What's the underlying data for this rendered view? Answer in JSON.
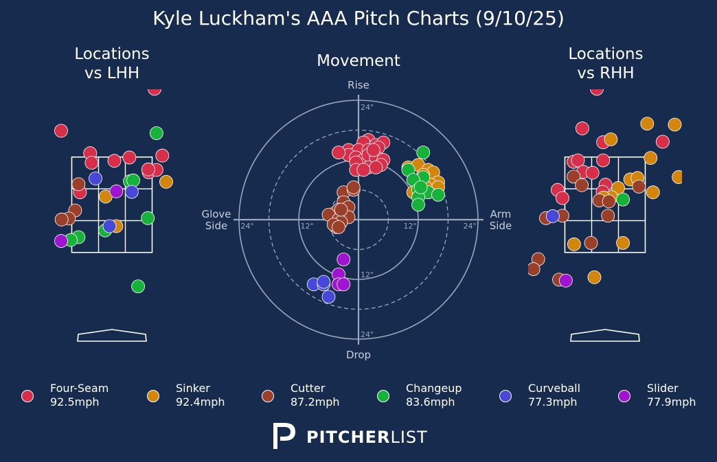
{
  "title": "Kyle Luckham's AAA Pitch Charts (9/10/25)",
  "panels": {
    "left_title": "Locations\nvs LHH",
    "center_title": "Movement",
    "right_title": "Locations\nvs RHH"
  },
  "movement_labels": {
    "rise": "Rise",
    "drop": "Drop",
    "glove": "Glove\nSide",
    "arm": "Arm\nSide",
    "tick_12": "12\"",
    "tick_24": "24\""
  },
  "colors": {
    "background": "#162B4D",
    "Four-Seam": "#D72E4A",
    "Sinker": "#D4860C",
    "Cutter": "#9A3F2A",
    "Changeup": "#16B23A",
    "Curveball": "#4747D8",
    "Slider": "#9E14D0"
  },
  "legend": [
    {
      "name": "Four-Seam",
      "speed": "92.5mph",
      "color": "#D72E4A"
    },
    {
      "name": "Sinker",
      "speed": "92.4mph",
      "color": "#D4860C"
    },
    {
      "name": "Cutter",
      "speed": "87.2mph",
      "color": "#9A3F2A"
    },
    {
      "name": "Changeup",
      "speed": "83.6mph",
      "color": "#16B23A"
    },
    {
      "name": "Curveball",
      "speed": "77.3mph",
      "color": "#4747D8"
    },
    {
      "name": "Slider",
      "speed": "77.9mph",
      "color": "#9E14D0"
    }
  ],
  "logo": {
    "bold": "PITCHER",
    "light": "LIST"
  },
  "chart_data": [
    {
      "type": "scatter",
      "title": "Locations vs LHH",
      "xlabel": "",
      "ylabel": "",
      "xlim": [
        -2.0,
        2.0
      ],
      "ylim": [
        -0.5,
        5.2
      ],
      "strike_zone": {
        "x": [
          -0.83,
          0.83
        ],
        "z": [
          1.5,
          3.5
        ],
        "grid": "3x3"
      },
      "points": [
        {
          "pitch": "Four-Seam",
          "x": 0.88,
          "z": 4.93
        },
        {
          "pitch": "Four-Seam",
          "x": -1.05,
          "z": 4.05
        },
        {
          "pitch": "Four-Seam",
          "x": -0.45,
          "z": 3.58
        },
        {
          "pitch": "Four-Seam",
          "x": -0.42,
          "z": 3.38
        },
        {
          "pitch": "Four-Seam",
          "x": 0.05,
          "z": 3.42
        },
        {
          "pitch": "Four-Seam",
          "x": 0.36,
          "z": 3.49
        },
        {
          "pitch": "Four-Seam",
          "x": 1.04,
          "z": 3.53
        },
        {
          "pitch": "Four-Seam",
          "x": 0.76,
          "z": 3.18
        },
        {
          "pitch": "Four-Seam",
          "x": 0.92,
          "z": 3.23
        },
        {
          "pitch": "Four-Seam",
          "x": 0.75,
          "z": 3.24
        },
        {
          "pitch": "Four-Seam",
          "x": -0.66,
          "z": 2.76
        },
        {
          "pitch": "Sinker",
          "x": 1.12,
          "z": 2.98
        },
        {
          "pitch": "Sinker",
          "x": -0.13,
          "z": 2.67
        },
        {
          "pitch": "Sinker",
          "x": 0.09,
          "z": 2.05
        },
        {
          "pitch": "Cutter",
          "x": -0.69,
          "z": 2.93
        },
        {
          "pitch": "Cutter",
          "x": -0.76,
          "z": 2.38
        },
        {
          "pitch": "Cutter",
          "x": -0.89,
          "z": 2.21
        },
        {
          "pitch": "Cutter",
          "x": -1.04,
          "z": 2.19
        },
        {
          "pitch": "Changeup",
          "x": 0.92,
          "z": 4.0
        },
        {
          "pitch": "Changeup",
          "x": 0.37,
          "z": 2.99
        },
        {
          "pitch": "Changeup",
          "x": 0.44,
          "z": 3.01
        },
        {
          "pitch": "Changeup",
          "x": 0.74,
          "z": 2.22
        },
        {
          "pitch": "Changeup",
          "x": -0.14,
          "z": 1.96
        },
        {
          "pitch": "Changeup",
          "x": -0.69,
          "z": 1.82
        },
        {
          "pitch": "Changeup",
          "x": -0.85,
          "z": 1.76
        },
        {
          "pitch": "Changeup",
          "x": 0.54,
          "z": 0.79
        },
        {
          "pitch": "Curveball",
          "x": -0.34,
          "z": 3.05
        },
        {
          "pitch": "Curveball",
          "x": 0.41,
          "z": 2.77
        },
        {
          "pitch": "Curveball",
          "x": -0.05,
          "z": 2.05
        },
        {
          "pitch": "Slider",
          "x": 0.09,
          "z": 2.78
        },
        {
          "pitch": "Slider",
          "x": -1.05,
          "z": 1.74
        }
      ]
    },
    {
      "type": "scatter",
      "title": "Movement",
      "xlabel": "Glove Side / Arm Side (in)",
      "ylabel": "Drop / Rise (in)",
      "xlim": [
        -24,
        24
      ],
      "ylim": [
        -24,
        24
      ],
      "rings": [
        6,
        12,
        18,
        24
      ],
      "points": [
        {
          "pitch": "Four-Seam",
          "x": 2,
          "y": 16
        },
        {
          "pitch": "Four-Seam",
          "x": 1,
          "y": 15.5
        },
        {
          "pitch": "Four-Seam",
          "x": 3.5,
          "y": 15
        },
        {
          "pitch": "Four-Seam",
          "x": 5,
          "y": 15.5
        },
        {
          "pitch": "Four-Seam",
          "x": -2,
          "y": 14
        },
        {
          "pitch": "Four-Seam",
          "x": 0,
          "y": 14
        },
        {
          "pitch": "Four-Seam",
          "x": 2,
          "y": 14
        },
        {
          "pitch": "Four-Seam",
          "x": 4,
          "y": 14.5
        },
        {
          "pitch": "Four-Seam",
          "x": -2,
          "y": 13
        },
        {
          "pitch": "Four-Seam",
          "x": -0.5,
          "y": 12.5
        },
        {
          "pitch": "Four-Seam",
          "x": 1,
          "y": 12
        },
        {
          "pitch": "Four-Seam",
          "x": 2,
          "y": 13
        },
        {
          "pitch": "Four-Seam",
          "x": 3.5,
          "y": 12.5
        },
        {
          "pitch": "Four-Seam",
          "x": 5,
          "y": 12
        },
        {
          "pitch": "Four-Seam",
          "x": -4,
          "y": 13.5
        },
        {
          "pitch": "Four-Seam",
          "x": 4.5,
          "y": 11
        },
        {
          "pitch": "Four-Seam",
          "x": -0.5,
          "y": 11.5
        },
        {
          "pitch": "Four-Seam",
          "x": 2,
          "y": 10.5
        },
        {
          "pitch": "Four-Seam",
          "x": -0.5,
          "y": 10
        },
        {
          "pitch": "Four-Seam",
          "x": 3.5,
          "y": 10.5
        },
        {
          "pitch": "Four-Seam",
          "x": 1,
          "y": 10
        },
        {
          "pitch": "Four-Seam",
          "x": 3,
          "y": 14
        },
        {
          "pitch": "Sinker",
          "x": 10,
          "y": 10.5
        },
        {
          "pitch": "Sinker",
          "x": 12,
          "y": 11
        },
        {
          "pitch": "Sinker",
          "x": 14,
          "y": 10
        },
        {
          "pitch": "Sinker",
          "x": 15,
          "y": 9.5
        },
        {
          "pitch": "Sinker",
          "x": 13,
          "y": 9
        },
        {
          "pitch": "Sinker",
          "x": 16,
          "y": 7.5
        },
        {
          "pitch": "Sinker",
          "x": 14.5,
          "y": 7
        },
        {
          "pitch": "Sinker",
          "x": 16,
          "y": 6.5
        },
        {
          "pitch": "Sinker",
          "x": 11,
          "y": 5.5
        },
        {
          "pitch": "Sinker",
          "x": 14,
          "y": 5.5
        },
        {
          "pitch": "Sinker",
          "x": 12.5,
          "y": 8
        },
        {
          "pitch": "Sinker",
          "x": 13.5,
          "y": 6.5
        },
        {
          "pitch": "Cutter",
          "x": -3,
          "y": 5.5
        },
        {
          "pitch": "Cutter",
          "x": -1,
          "y": 6
        },
        {
          "pitch": "Cutter",
          "x": -1,
          "y": 6.5
        },
        {
          "pitch": "Cutter",
          "x": -3,
          "y": 3.5
        },
        {
          "pitch": "Cutter",
          "x": -2,
          "y": 2.5
        },
        {
          "pitch": "Cutter",
          "x": -4,
          "y": 2
        },
        {
          "pitch": "Cutter",
          "x": -6,
          "y": 1
        },
        {
          "pitch": "Cutter",
          "x": -2,
          "y": 0.5
        },
        {
          "pitch": "Cutter",
          "x": -4,
          "y": 0
        },
        {
          "pitch": "Cutter",
          "x": -3.5,
          "y": -0.5
        },
        {
          "pitch": "Cutter",
          "x": -4.5,
          "y": -1.5
        },
        {
          "pitch": "Cutter",
          "x": -5,
          "y": -1
        },
        {
          "pitch": "Cutter",
          "x": -4,
          "y": -1.5
        },
        {
          "pitch": "Cutter",
          "x": -3.5,
          "y": 2
        },
        {
          "pitch": "Changeup",
          "x": 13,
          "y": 13.5
        },
        {
          "pitch": "Changeup",
          "x": 10,
          "y": 10
        },
        {
          "pitch": "Changeup",
          "x": 13,
          "y": 8.5
        },
        {
          "pitch": "Changeup",
          "x": 11,
          "y": 8
        },
        {
          "pitch": "Changeup",
          "x": 12,
          "y": 6
        },
        {
          "pitch": "Changeup",
          "x": 14,
          "y": 5.5
        },
        {
          "pitch": "Changeup",
          "x": 16,
          "y": 5
        },
        {
          "pitch": "Changeup",
          "x": 12,
          "y": 4.5
        },
        {
          "pitch": "Changeup",
          "x": 12,
          "y": 3
        },
        {
          "pitch": "Changeup",
          "x": 12.5,
          "y": 6.5
        },
        {
          "pitch": "Curveball",
          "x": -9,
          "y": -13
        },
        {
          "pitch": "Curveball",
          "x": -7,
          "y": -13
        },
        {
          "pitch": "Curveball",
          "x": -7,
          "y": -12.5
        },
        {
          "pitch": "Curveball",
          "x": -6,
          "y": -15.5
        },
        {
          "pitch": "Slider",
          "x": -3,
          "y": -8
        },
        {
          "pitch": "Slider",
          "x": -4,
          "y": -11
        },
        {
          "pitch": "Slider",
          "x": -4,
          "y": -13
        },
        {
          "pitch": "Slider",
          "x": -3,
          "y": -13
        }
      ]
    },
    {
      "type": "scatter",
      "title": "Locations vs RHH",
      "xlabel": "",
      "ylabel": "",
      "xlim": [
        -2.0,
        2.0
      ],
      "ylim": [
        -0.5,
        5.2
      ],
      "strike_zone": {
        "x": [
          -0.83,
          0.83
        ],
        "z": [
          1.5,
          3.5
        ],
        "grid": "3x3"
      },
      "points": [
        {
          "pitch": "Four-Seam",
          "x": -0.17,
          "z": 4.93
        },
        {
          "pitch": "Four-Seam",
          "x": -0.47,
          "z": 4.1
        },
        {
          "pitch": "Four-Seam",
          "x": -0.04,
          "z": 3.81
        },
        {
          "pitch": "Four-Seam",
          "x": 1.19,
          "z": 3.82
        },
        {
          "pitch": "Four-Seam",
          "x": -0.65,
          "z": 3.4
        },
        {
          "pitch": "Four-Seam",
          "x": -0.56,
          "z": 3.43
        },
        {
          "pitch": "Four-Seam",
          "x": -0.04,
          "z": 3.43
        },
        {
          "pitch": "Four-Seam",
          "x": -0.45,
          "z": 3.19
        },
        {
          "pitch": "Four-Seam",
          "x": -0.26,
          "z": 3.17
        },
        {
          "pitch": "Four-Seam",
          "x": 0.01,
          "z": 2.92
        },
        {
          "pitch": "Four-Seam",
          "x": -0.98,
          "z": 2.81
        },
        {
          "pitch": "Four-Seam",
          "x": -0.05,
          "z": 2.77
        },
        {
          "pitch": "Four-Seam",
          "x": -0.88,
          "z": 2.64
        },
        {
          "pitch": "Sinker",
          "x": 0.87,
          "z": 4.2
        },
        {
          "pitch": "Sinker",
          "x": 1.44,
          "z": 4.18
        },
        {
          "pitch": "Sinker",
          "x": 0.12,
          "z": 3.87
        },
        {
          "pitch": "Sinker",
          "x": 0.94,
          "z": 3.48
        },
        {
          "pitch": "Sinker",
          "x": 0.52,
          "z": 3.03
        },
        {
          "pitch": "Sinker",
          "x": 0.67,
          "z": 3.06
        },
        {
          "pitch": "Sinker",
          "x": 1.52,
          "z": 3.08
        },
        {
          "pitch": "Sinker",
          "x": 0.27,
          "z": 2.85
        },
        {
          "pitch": "Sinker",
          "x": 0.99,
          "z": 2.76
        },
        {
          "pitch": "Sinker",
          "x": 0.13,
          "z": 2.66
        },
        {
          "pitch": "Sinker",
          "x": -0.03,
          "z": 2.65
        },
        {
          "pitch": "Sinker",
          "x": 0.37,
          "z": 1.7
        },
        {
          "pitch": "Sinker",
          "x": -0.64,
          "z": 1.67
        },
        {
          "pitch": "Sinker",
          "x": -0.22,
          "z": 0.98
        },
        {
          "pitch": "Cutter",
          "x": -0.65,
          "z": 3.09
        },
        {
          "pitch": "Cutter",
          "x": -0.48,
          "z": 2.91
        },
        {
          "pitch": "Cutter",
          "x": 0.7,
          "z": 2.88
        },
        {
          "pitch": "Cutter",
          "x": -0.12,
          "z": 2.59
        },
        {
          "pitch": "Cutter",
          "x": 0.08,
          "z": 2.57
        },
        {
          "pitch": "Cutter",
          "x": -0.88,
          "z": 2.27
        },
        {
          "pitch": "Cutter",
          "x": -1.22,
          "z": 2.22
        },
        {
          "pitch": "Cutter",
          "x": 0.06,
          "z": 2.27
        },
        {
          "pitch": "Cutter",
          "x": -0.29,
          "z": 1.7
        },
        {
          "pitch": "Cutter",
          "x": -1.38,
          "z": 1.36
        },
        {
          "pitch": "Cutter",
          "x": -1.48,
          "z": 1.15
        },
        {
          "pitch": "Cutter",
          "x": -0.95,
          "z": 0.93
        },
        {
          "pitch": "Changeup",
          "x": 0.37,
          "z": 2.61
        },
        {
          "pitch": "Curveball",
          "x": -1.08,
          "z": 2.26
        },
        {
          "pitch": "Slider",
          "x": -0.81,
          "z": 0.91
        }
      ]
    }
  ]
}
